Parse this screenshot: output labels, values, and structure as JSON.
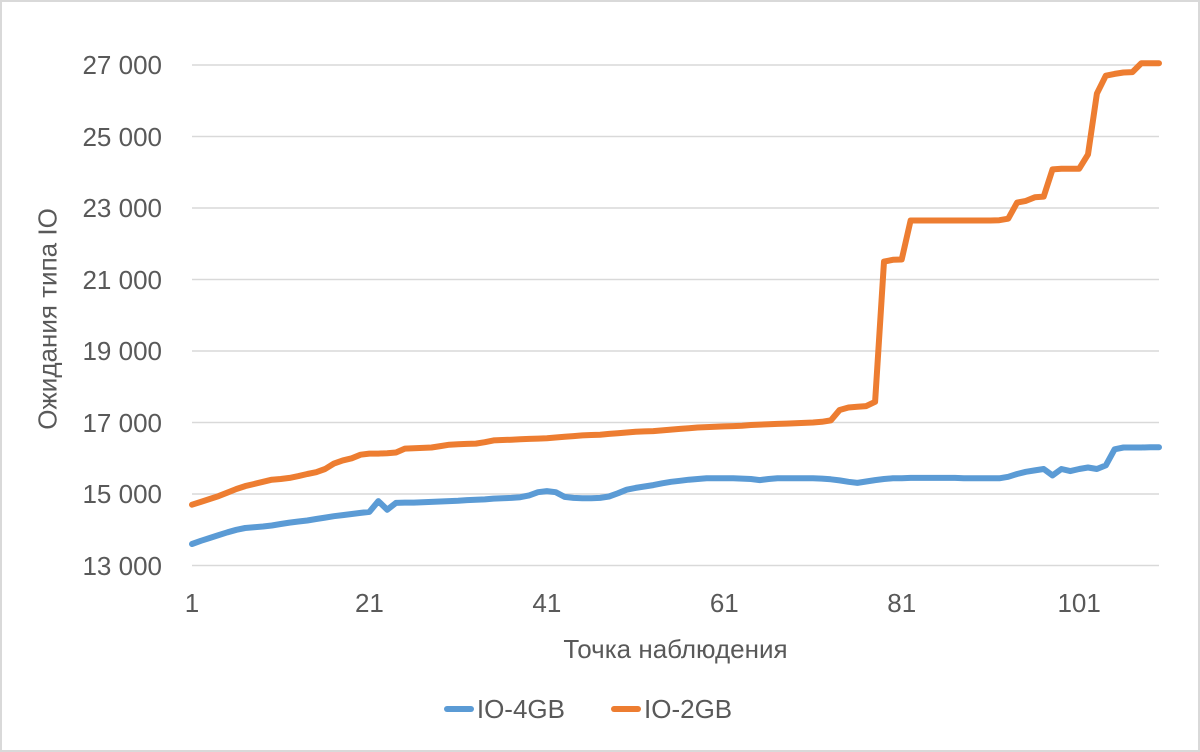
{
  "colors": {
    "text": "#595959",
    "gridline": "#D9D9D9",
    "frame_border": "#D9D9D9",
    "background": "#FFFFFF",
    "series_blue": "#5B9BD5",
    "series_orange": "#ED7D31"
  },
  "chart_data": {
    "type": "line",
    "title": "",
    "xlabel": "Точка наблюдения",
    "ylabel": "Ожидания типа IO",
    "xlim": [
      1,
      110
    ],
    "ylim": [
      13000,
      27000
    ],
    "x_start": 1,
    "grid": "horizontal",
    "legend_position": "bottom",
    "x_ticks": [
      {
        "v": 1,
        "label": "1"
      },
      {
        "v": 21,
        "label": "21"
      },
      {
        "v": 41,
        "label": "41"
      },
      {
        "v": 61,
        "label": "61"
      },
      {
        "v": 81,
        "label": "81"
      },
      {
        "v": 101,
        "label": "101"
      }
    ],
    "y_ticks": [
      {
        "v": 13000,
        "label": "13 000"
      },
      {
        "v": 15000,
        "label": "15 000"
      },
      {
        "v": 17000,
        "label": "17 000"
      },
      {
        "v": 19000,
        "label": "19 000"
      },
      {
        "v": 21000,
        "label": "21 000"
      },
      {
        "v": 23000,
        "label": "23 000"
      },
      {
        "v": 25000,
        "label": "25 000"
      },
      {
        "v": 27000,
        "label": "27 000"
      }
    ],
    "series": [
      {
        "name": "IO-4GB",
        "color": "#5B9BD5",
        "values": [
          13600,
          13690,
          13770,
          13850,
          13930,
          14000,
          14050,
          14070,
          14090,
          14120,
          14160,
          14200,
          14230,
          14260,
          14300,
          14340,
          14380,
          14410,
          14440,
          14470,
          14500,
          14800,
          14560,
          14750,
          14760,
          14760,
          14770,
          14780,
          14790,
          14800,
          14810,
          14830,
          14840,
          14850,
          14870,
          14880,
          14890,
          14910,
          14960,
          15050,
          15080,
          15050,
          14920,
          14890,
          14880,
          14880,
          14890,
          14930,
          15020,
          15120,
          15170,
          15210,
          15250,
          15300,
          15340,
          15370,
          15400,
          15420,
          15440,
          15440,
          15440,
          15440,
          15430,
          15420,
          15390,
          15420,
          15440,
          15440,
          15440,
          15440,
          15440,
          15430,
          15410,
          15380,
          15340,
          15310,
          15350,
          15390,
          15420,
          15440,
          15440,
          15450,
          15450,
          15450,
          15450,
          15450,
          15450,
          15440,
          15440,
          15440,
          15440,
          15440,
          15480,
          15560,
          15620,
          15660,
          15700,
          15520,
          15700,
          15640,
          15700,
          15740,
          15700,
          15800,
          16250,
          16300,
          16300,
          16300,
          16310,
          16310
        ]
      },
      {
        "name": "IO-2GB",
        "color": "#ED7D31",
        "values": [
          14700,
          14780,
          14860,
          14940,
          15040,
          15140,
          15220,
          15280,
          15340,
          15400,
          15420,
          15450,
          15500,
          15560,
          15610,
          15700,
          15850,
          15940,
          16000,
          16100,
          16130,
          16130,
          16140,
          16160,
          16270,
          16280,
          16290,
          16300,
          16340,
          16380,
          16390,
          16400,
          16410,
          16450,
          16500,
          16510,
          16520,
          16530,
          16540,
          16550,
          16560,
          16580,
          16600,
          16620,
          16640,
          16650,
          16660,
          16680,
          16700,
          16720,
          16740,
          16750,
          16760,
          16780,
          16800,
          16820,
          16840,
          16860,
          16870,
          16880,
          16890,
          16900,
          16910,
          16930,
          16940,
          16950,
          16960,
          16970,
          16980,
          16990,
          17000,
          17020,
          17060,
          17350,
          17420,
          17440,
          17460,
          17580,
          21500,
          21550,
          21560,
          22650,
          22650,
          22650,
          22650,
          22650,
          22650,
          22650,
          22650,
          22650,
          22650,
          22660,
          22700,
          23150,
          23200,
          23300,
          23320,
          24080,
          24100,
          24100,
          24100,
          24500,
          26200,
          26700,
          26750,
          26790,
          26800,
          27050,
          27050,
          27050
        ]
      }
    ]
  }
}
